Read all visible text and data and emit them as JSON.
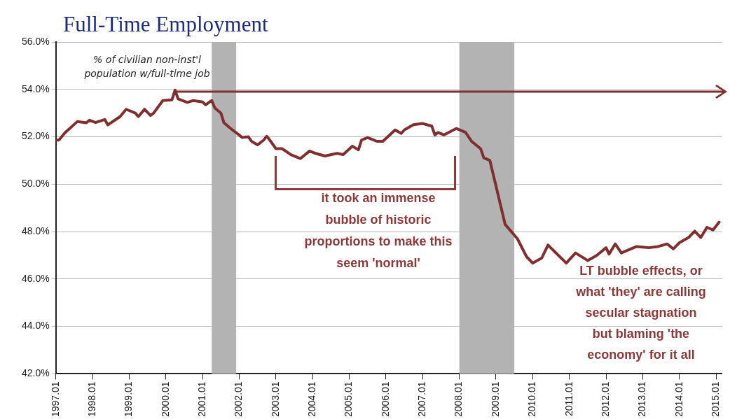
{
  "chart_data": {
    "type": "line",
    "title": "Full-Time Employment",
    "annotations": [
      "% of civilian non-inst'l\npopulation w/full-time job",
      "it took an immense\nbubble of historic\nproportions to make this\nseem 'normal'",
      "LT bubble effects, or\nwhat 'they' are calling\nsecular stagnation\nbut blaming 'the\neconomy' for it all"
    ],
    "series": [
      {
        "type": "line",
        "color": "#7f2f2f",
        "x": [
          "1997-01",
          "1997-02",
          "1997-04",
          "1997-08",
          "1997-11",
          "1997-12",
          "1998-02",
          "1998-05",
          "1998-06",
          "1998-10",
          "1998-12",
          "1999-03",
          "1999-04",
          "1999-06",
          "1999-08",
          "1999-09",
          "1999-12",
          "2000-03",
          "2000-04",
          "2000-05",
          "2000-08",
          "2000-10",
          "2001-01",
          "2001-02",
          "2001-04",
          "2001-05",
          "2001-07",
          "2001-08",
          "2001-10",
          "2002-01",
          "2002-02",
          "2002-04",
          "2002-05",
          "2002-07",
          "2002-09",
          "2002-10",
          "2002-11",
          "2003-01",
          "2003-03",
          "2003-06",
          "2003-09",
          "2003-12",
          "2004-02",
          "2004-05",
          "2004-09",
          "2004-11",
          "2005-02",
          "2005-04",
          "2005-05",
          "2005-07",
          "2005-10",
          "2005-12",
          "2006-04",
          "2006-06",
          "2006-07",
          "2006-10",
          "2007-01",
          "2007-04",
          "2007-05",
          "2007-06",
          "2007-08",
          "2007-12",
          "2008-03",
          "2008-05",
          "2008-08",
          "2008-09",
          "2008-11",
          "2009-01",
          "2009-04",
          "2009-08",
          "2009-11",
          "2010-01",
          "2010-04",
          "2010-06",
          "2010-09",
          "2010-12",
          "2011-03",
          "2011-07",
          "2011-10",
          "2012-01",
          "2012-02",
          "2012-04",
          "2012-06",
          "2012-08",
          "2012-11",
          "2013-03",
          "2013-06",
          "2013-09",
          "2013-11",
          "2014-01",
          "2014-04",
          "2014-06",
          "2014-08",
          "2014-10",
          "2014-12",
          "2015-02"
        ],
        "values": [
          51.86,
          51.86,
          52.17,
          52.64,
          52.59,
          52.7,
          52.6,
          52.73,
          52.5,
          52.85,
          53.16,
          53.0,
          52.85,
          53.16,
          52.9,
          53.0,
          53.53,
          53.56,
          53.97,
          53.6,
          53.45,
          53.53,
          53.47,
          53.35,
          53.53,
          53.22,
          53.0,
          52.59,
          52.37,
          52.07,
          51.97,
          52.0,
          51.81,
          51.66,
          51.86,
          52.02,
          51.86,
          51.5,
          51.5,
          51.24,
          51.08,
          51.4,
          51.3,
          51.19,
          51.3,
          51.25,
          51.6,
          51.45,
          51.86,
          51.97,
          51.81,
          51.81,
          52.29,
          52.14,
          52.29,
          52.51,
          52.56,
          52.45,
          52.08,
          52.18,
          52.08,
          52.35,
          52.19,
          51.81,
          51.49,
          51.11,
          51.0,
          49.92,
          48.3,
          47.7,
          46.94,
          46.67,
          46.89,
          47.43,
          47.05,
          46.67,
          47.1,
          46.78,
          47.0,
          47.32,
          47.05,
          47.48,
          47.1,
          47.21,
          47.37,
          47.32,
          47.37,
          47.48,
          47.27,
          47.53,
          47.75,
          48.02,
          47.75,
          48.18,
          48.07,
          48.4
        ]
      }
    ],
    "xlim": [
      "1997-01",
      "2015-03"
    ],
    "xticks": [
      {
        "value": "1997-01",
        "label": "1997.01"
      },
      {
        "value": "1998-01",
        "label": "1998.01"
      },
      {
        "value": "1999-01",
        "label": "1999.01"
      },
      {
        "value": "2000-01",
        "label": "2000.01"
      },
      {
        "value": "2001-01",
        "label": "2001.01"
      },
      {
        "value": "2002-01",
        "label": "2002.01"
      },
      {
        "value": "2003-01",
        "label": "2003.01"
      },
      {
        "value": "2004-01",
        "label": "2004.01"
      },
      {
        "value": "2005-01",
        "label": "2005.01"
      },
      {
        "value": "2006-01",
        "label": "2006.01"
      },
      {
        "value": "2007-01",
        "label": "2007.01"
      },
      {
        "value": "2008-01",
        "label": "2008.01"
      },
      {
        "value": "2009-01",
        "label": "2009.01"
      },
      {
        "value": "2010-01",
        "label": "2010.01"
      },
      {
        "value": "2011-01",
        "label": "2011.01"
      },
      {
        "value": "2012-01",
        "label": "2012.01"
      },
      {
        "value": "2013-01",
        "label": "2013.01"
      },
      {
        "value": "2014-01",
        "label": "2014.01"
      },
      {
        "value": "2015-01",
        "label": "2015.01"
      }
    ],
    "ylim": [
      42,
      56
    ],
    "yticks": [
      {
        "value": 42,
        "label": "42.0%"
      },
      {
        "value": 44,
        "label": "44.0%"
      },
      {
        "value": 46,
        "label": "46.0%"
      },
      {
        "value": 48,
        "label": "48.0%"
      },
      {
        "value": 50,
        "label": "50.0%"
      },
      {
        "value": 52,
        "label": "52.0%"
      },
      {
        "value": 54,
        "label": "54.0%"
      },
      {
        "value": 56,
        "label": "56.0%"
      }
    ],
    "bands": [
      {
        "axis": "x",
        "from": "2001-04",
        "to": "2001-12",
        "color": "#b3b3b3"
      },
      {
        "axis": "x",
        "from": "2008-01",
        "to": "2009-07",
        "color": "#b3b3b3"
      }
    ],
    "grid": "y",
    "legend": false,
    "marker": "none",
    "line_style": "solid"
  }
}
